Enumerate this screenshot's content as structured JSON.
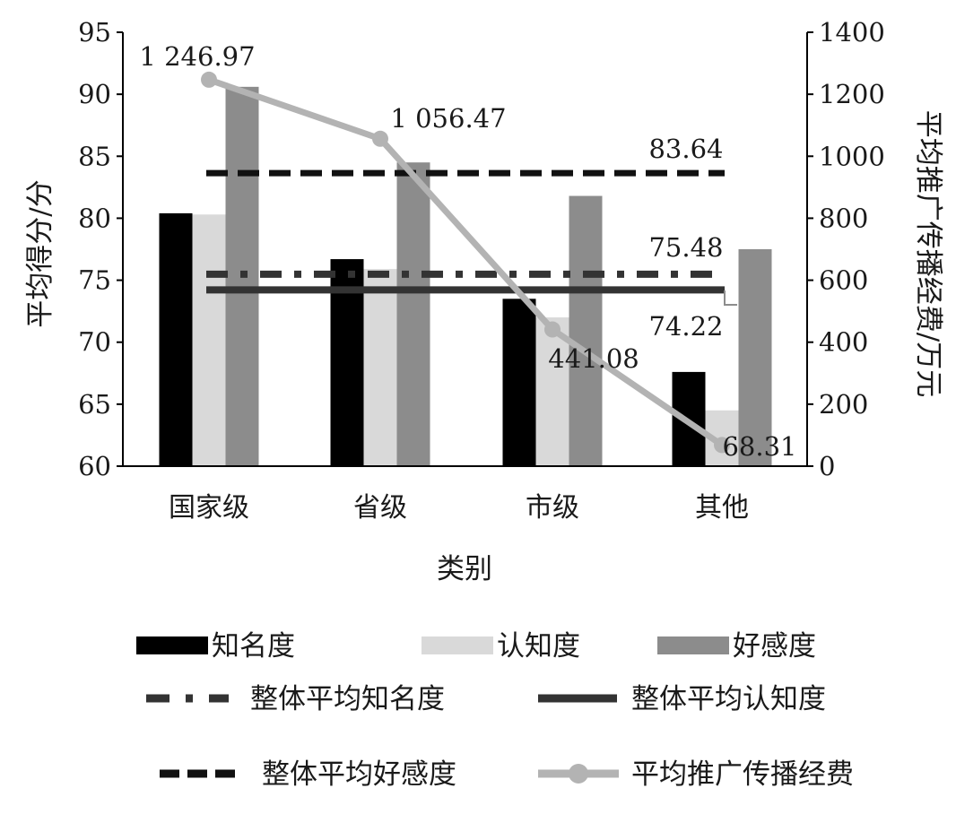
{
  "chart_data": {
    "type": "bar",
    "categories": [
      "国家级",
      "省级",
      "市级",
      "其他"
    ],
    "xlabel": "类别",
    "ylabel": "平均得分/分",
    "y2label": "平均推广传播经费/万元",
    "ylim": [
      60,
      95
    ],
    "yticks": [
      "60",
      "65",
      "70",
      "75",
      "80",
      "85",
      "90",
      "95"
    ],
    "y2lim": [
      0,
      1400
    ],
    "y2ticks": [
      "0",
      "200",
      "400",
      "600",
      "800",
      "1000",
      "1200",
      "1400"
    ],
    "grid": false,
    "legend_position": "bottom",
    "series": [
      {
        "name": "知名度",
        "values": [
          80.4,
          76.7,
          73.5,
          67.6
        ],
        "color": "#000000",
        "type": "bar"
      },
      {
        "name": "认知度",
        "values": [
          80.3,
          75.9,
          72.0,
          64.5
        ],
        "color": "#d9d9d9",
        "type": "bar"
      },
      {
        "name": "好感度",
        "values": [
          90.6,
          84.5,
          81.8,
          77.5
        ],
        "color": "#8c8c8c",
        "type": "bar"
      }
    ],
    "reference_lines": [
      {
        "name": "整体平均知名度",
        "value": 75.48,
        "label": "75.48",
        "style": "dash-dot",
        "color": "#333333"
      },
      {
        "name": "整体平均认知度",
        "value": 74.22,
        "label": "74.22",
        "style": "solid",
        "color": "#333333"
      },
      {
        "name": "整体平均好感度",
        "value": 83.64,
        "label": "83.64",
        "style": "dash",
        "color": "#111111"
      }
    ],
    "line_series": {
      "name": "平均推广传播经费",
      "axis": "right",
      "values": [
        1246.97,
        1056.47,
        441.08,
        68.31
      ],
      "labels": [
        "1 246.97",
        "1 056.47",
        "441.08",
        "68.31"
      ],
      "color": "#b3b3b3"
    },
    "legend": [
      {
        "key": "知名度",
        "label": "知名度",
        "kind": "bar",
        "color": "#000000"
      },
      {
        "key": "认知度",
        "label": "认知度",
        "kind": "bar",
        "color": "#d9d9d9"
      },
      {
        "key": "好感度",
        "label": "好感度",
        "kind": "bar",
        "color": "#8c8c8c"
      },
      {
        "key": "整体平均知名度",
        "label": "整体平均知名度",
        "kind": "dash-dot",
        "color": "#333333"
      },
      {
        "key": "整体平均认知度",
        "label": "整体平均认知度",
        "kind": "solid",
        "color": "#333333"
      },
      {
        "key": "整体平均好感度",
        "label": "整体平均好感度",
        "kind": "dash",
        "color": "#111111"
      },
      {
        "key": "平均推广传播经费",
        "label": "平均推广传播经费",
        "kind": "marker-line",
        "color": "#b3b3b3"
      }
    ]
  }
}
